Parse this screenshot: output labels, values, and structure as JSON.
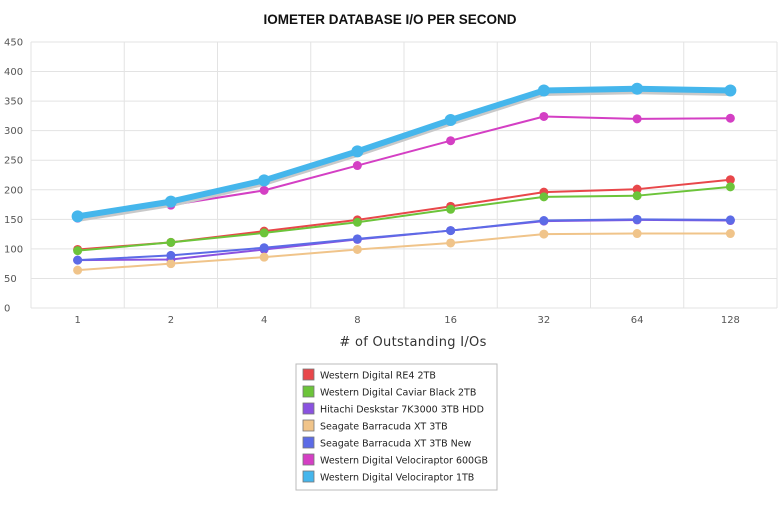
{
  "chart_data": {
    "type": "line",
    "title": "IOMETER DATABASE I/O PER SECOND",
    "xlabel": "# of Outstanding I/Os",
    "ylabel": "",
    "categories": [
      "1",
      "2",
      "4",
      "8",
      "16",
      "32",
      "64",
      "128"
    ],
    "ylim": [
      0,
      450
    ],
    "yticks": [
      "0",
      "50",
      "100",
      "150",
      "200",
      "250",
      "300",
      "350",
      "400",
      "450"
    ],
    "grid": true,
    "legend_position": "bottom",
    "series": [
      {
        "name": "Western Digital RE4 2TB",
        "color": "#e8474a",
        "values": [
          99,
          111,
          130,
          149,
          172,
          196,
          201,
          217
        ]
      },
      {
        "name": "Western Digital Caviar Black 2TB",
        "color": "#6cc43a",
        "values": [
          97,
          111,
          127,
          145,
          167,
          188,
          190,
          205
        ]
      },
      {
        "name": "Hitachi Deskstar 7K3000 3TB HDD",
        "color": "#8a52e0",
        "values": [
          81,
          82,
          99,
          116,
          131,
          147,
          149,
          148
        ]
      },
      {
        "name": "Seagate Barracuda XT 3TB",
        "color": "#f0c48a",
        "values": [
          64,
          75,
          86,
          99,
          110,
          125,
          126,
          126
        ]
      },
      {
        "name": "Seagate Barracuda XT 3TB New",
        "color": "#5c6be6",
        "values": [
          81,
          89,
          102,
          117,
          131,
          148,
          150,
          149
        ]
      },
      {
        "name": "Western Digital Velociraptor 600GB",
        "color": "#d43fc4",
        "values": [
          152,
          174,
          199,
          241,
          283,
          324,
          320,
          321
        ]
      },
      {
        "name": "Western Digital Velociraptor 1TB",
        "color": "#45b6ec",
        "values": [
          155,
          180,
          216,
          265,
          318,
          368,
          371,
          368
        ]
      }
    ]
  }
}
